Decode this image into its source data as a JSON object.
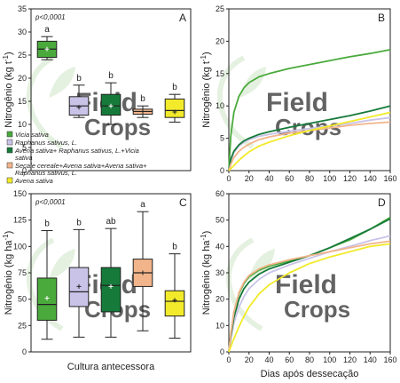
{
  "chart_data": [
    {
      "panel": "A",
      "type": "box",
      "annotation": "p<0,0001",
      "ylabel": "Nitrogênio (kg t⁻¹)",
      "ylim": [
        0,
        35
      ],
      "yticks": [
        0,
        5,
        10,
        15,
        20,
        25,
        30,
        35
      ],
      "boxes": [
        {
          "name": "Vicia sativa",
          "color": "#4aaa3c",
          "whisker_low": 24.0,
          "q1": 24.5,
          "median": 26.3,
          "q3": 28.0,
          "whisker_high": 29.0,
          "mean": 26.3,
          "letter": "a"
        },
        {
          "name": "Raphanus sativus, L.",
          "color": "#c9c3e8",
          "whisker_low": 11.5,
          "q1": 12.0,
          "median": 14.0,
          "q3": 16.0,
          "whisker_high": 18.5,
          "mean": 13.7,
          "letter": "b"
        },
        {
          "name": "Avena sativa+ Raphanus sativus, L.+Vicia sativa",
          "color": "#167a3a",
          "whisker_low": 10.0,
          "q1": 12.0,
          "median": 14.0,
          "q3": 16.5,
          "whisker_high": 19.0,
          "mean": 14.0,
          "letter": "b"
        },
        {
          "name": "Secale cereale+Avena sativa+Avena sativa+ Raphanus sativus, L.",
          "color": "#f2b48a",
          "whisker_low": 11.5,
          "q1": 12.2,
          "median": 12.8,
          "q3": 13.3,
          "whisker_high": 14.0,
          "mean": 12.8,
          "letter": "b"
        },
        {
          "name": "Avena sativa",
          "color": "#f2ea2a",
          "whisker_low": 10.5,
          "q1": 11.5,
          "median": 13.0,
          "q3": 15.5,
          "whisker_high": 16.5,
          "mean": 12.7,
          "letter": "b"
        }
      ]
    },
    {
      "panel": "B",
      "type": "line",
      "ylabel": "Nitrogênio (kg t⁻¹)",
      "xlim": [
        0,
        160
      ],
      "ylim": [
        0,
        25
      ],
      "xticks": [
        0,
        20,
        40,
        60,
        80,
        100,
        120,
        140,
        160
      ],
      "yticks": [
        0,
        5,
        10,
        15,
        20,
        25
      ],
      "x": [
        0,
        2,
        5,
        10,
        15,
        20,
        30,
        40,
        60,
        80,
        100,
        120,
        140,
        160
      ],
      "series": [
        {
          "color": "#4aaa3c",
          "values": [
            0,
            5.5,
            9.0,
            11.5,
            12.8,
            13.6,
            14.5,
            15.0,
            15.8,
            16.4,
            17.0,
            17.6,
            18.1,
            18.7
          ]
        },
        {
          "color": "#c9c3e8",
          "values": [
            0,
            1.5,
            2.8,
            3.8,
            4.4,
            4.8,
            5.3,
            5.6,
            6.1,
            6.5,
            6.9,
            7.3,
            7.8,
            8.2
          ]
        },
        {
          "color": "#167a3a",
          "values": [
            0,
            1.8,
            3.0,
            4.0,
            4.6,
            5.0,
            5.6,
            6.0,
            6.7,
            7.3,
            7.9,
            8.5,
            9.2,
            10.0
          ]
        },
        {
          "color": "#f2b48a",
          "values": [
            0,
            1.0,
            2.0,
            3.0,
            3.6,
            4.1,
            4.8,
            5.2,
            5.8,
            6.2,
            6.6,
            7.0,
            7.3,
            7.5
          ]
        },
        {
          "color": "#f2ea2a",
          "values": [
            0,
            0.3,
            0.8,
            1.6,
            2.3,
            2.9,
            3.8,
            4.4,
            5.4,
            6.2,
            6.9,
            7.6,
            8.3,
            9.0
          ]
        }
      ]
    },
    {
      "panel": "C",
      "type": "box",
      "annotation": "p<0,0001",
      "ylabel": "Nitrogênio (kg ha⁻¹)",
      "xlabel": "Cultura antecessora",
      "ylim": [
        0,
        150
      ],
      "yticks": [
        0,
        25,
        50,
        75,
        100,
        125,
        150
      ],
      "boxes": [
        {
          "name": "Vicia sativa",
          "color": "#4aaa3c",
          "whisker_low": 12,
          "q1": 30,
          "median": 45,
          "q3": 70,
          "whisker_high": 115,
          "mean": 51,
          "letter": "b"
        },
        {
          "name": "Raphanus sativus, L.",
          "color": "#c9c3e8",
          "whisker_low": 14,
          "q1": 43,
          "median": 57,
          "q3": 80,
          "whisker_high": 116,
          "mean": 62,
          "letter": "b"
        },
        {
          "name": "Avena sativa+ Raphanus sativus, L.+Vicia sativa",
          "color": "#167a3a",
          "whisker_low": 14,
          "q1": 38,
          "median": 63,
          "q3": 80,
          "whisker_high": 117,
          "mean": 62,
          "letter": "ab"
        },
        {
          "name": "Secale cereale+Avena sativa+Avena sativa+ Raphanus sativus, L.",
          "color": "#f2b48a",
          "whisker_low": 20,
          "q1": 62,
          "median": 75,
          "q3": 88,
          "whisker_high": 133,
          "mean": 75,
          "letter": "a"
        },
        {
          "name": "Avena sativa",
          "color": "#f2ea2a",
          "whisker_low": 13,
          "q1": 34,
          "median": 48,
          "q3": 58,
          "whisker_high": 93,
          "mean": 49,
          "letter": "b"
        }
      ]
    },
    {
      "panel": "D",
      "type": "line",
      "ylabel": "Nitrogênio (kg ha⁻¹)",
      "xlabel": "Dias após dessecação",
      "xlim": [
        0,
        160
      ],
      "ylim": [
        0,
        60
      ],
      "xticks": [
        0,
        20,
        40,
        60,
        80,
        100,
        120,
        140,
        160
      ],
      "yticks": [
        0,
        10,
        20,
        30,
        40,
        50,
        60
      ],
      "x": [
        0,
        2,
        5,
        10,
        15,
        20,
        30,
        40,
        60,
        80,
        100,
        120,
        140,
        160
      ],
      "series": [
        {
          "color": "#4aaa3c",
          "values": [
            0,
            7,
            15,
            22,
            26,
            28.5,
            31,
            32.5,
            34.5,
            36.5,
            39.5,
            42.5,
            46.5,
            51
          ]
        },
        {
          "color": "#c9c3e8",
          "values": [
            0,
            5,
            11,
            17,
            21,
            24,
            27.5,
            30,
            33,
            35.5,
            38,
            40,
            42.2,
            44
          ]
        },
        {
          "color": "#167a3a",
          "values": [
            0,
            6,
            13,
            20,
            24,
            26.5,
            29.5,
            31.5,
            34,
            36.5,
            39.5,
            43,
            46.5,
            50.5
          ]
        },
        {
          "color": "#f2b48a",
          "values": [
            0,
            7,
            15,
            22.5,
            26.5,
            29,
            31.5,
            33,
            35,
            36.5,
            38,
            39.5,
            41,
            42
          ]
        },
        {
          "color": "#f2ea2a",
          "values": [
            0,
            2,
            5,
            9.5,
            13.5,
            17,
            22,
            25.5,
            30,
            33.5,
            36,
            38,
            40,
            41
          ]
        }
      ]
    }
  ],
  "watermark": "Field Crops"
}
